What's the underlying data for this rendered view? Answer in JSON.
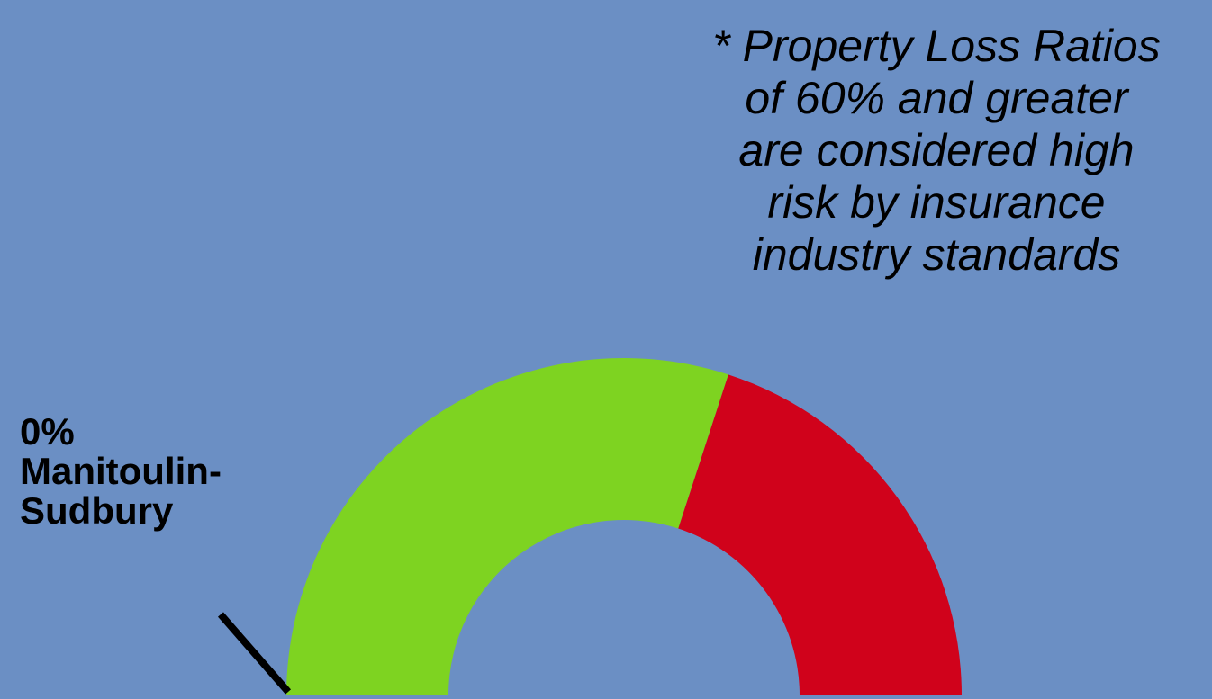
{
  "note": {
    "line1": "* Property Loss Ratios",
    "line2": "of 60% and greater",
    "line3": "are considered high",
    "line4": "risk by insurance",
    "line5": "industry standards"
  },
  "colors": {
    "background": "#6b8fc4",
    "low_risk": "#7ed321",
    "high_risk": "#d0021b",
    "needle": "#000000"
  },
  "chart_data": {
    "type": "gauge",
    "min": 0,
    "max": 100,
    "value": 0,
    "value_label": "0%",
    "region_name_line1": "Manitoulin-",
    "region_name_line2": "Sudbury",
    "bands": [
      {
        "from": 0,
        "to": 60,
        "color": "#7ed321"
      },
      {
        "from": 60,
        "to": 100,
        "color": "#d0021b"
      }
    ]
  }
}
